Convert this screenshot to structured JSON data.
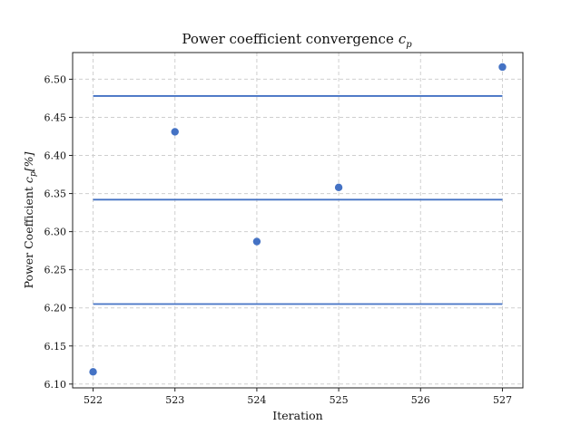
{
  "chart_data": {
    "type": "scatter",
    "title": "Power coefficient convergence",
    "title_math": "c",
    "title_math_sub": "p",
    "xlabel": "Iteration",
    "ylabel": "Power Coefficient",
    "ylabel_math": "c",
    "ylabel_math_sub": "p",
    "ylabel_unit": "[%]",
    "xlim": [
      521.75,
      527.25
    ],
    "ylim": [
      6.095,
      6.535
    ],
    "x_ticks": [
      522,
      523,
      524,
      525,
      526,
      527
    ],
    "y_ticks": [
      6.1,
      6.15,
      6.2,
      6.25,
      6.3,
      6.35,
      6.4,
      6.45,
      6.5
    ],
    "grid": true,
    "series": [
      {
        "x": [
          522,
          523,
          524,
          525,
          527
        ],
        "y": [
          6.116,
          6.431,
          6.287,
          6.358,
          6.516
        ],
        "color": "#4472c4"
      }
    ],
    "hlines": [
      {
        "y": 6.478,
        "xmin": 522,
        "xmax": 527,
        "color": "#4472c4"
      },
      {
        "y": 6.342,
        "xmin": 522,
        "xmax": 527,
        "color": "#4472c4"
      },
      {
        "y": 6.205,
        "xmin": 522,
        "xmax": 527,
        "color": "#4472c4"
      }
    ]
  }
}
